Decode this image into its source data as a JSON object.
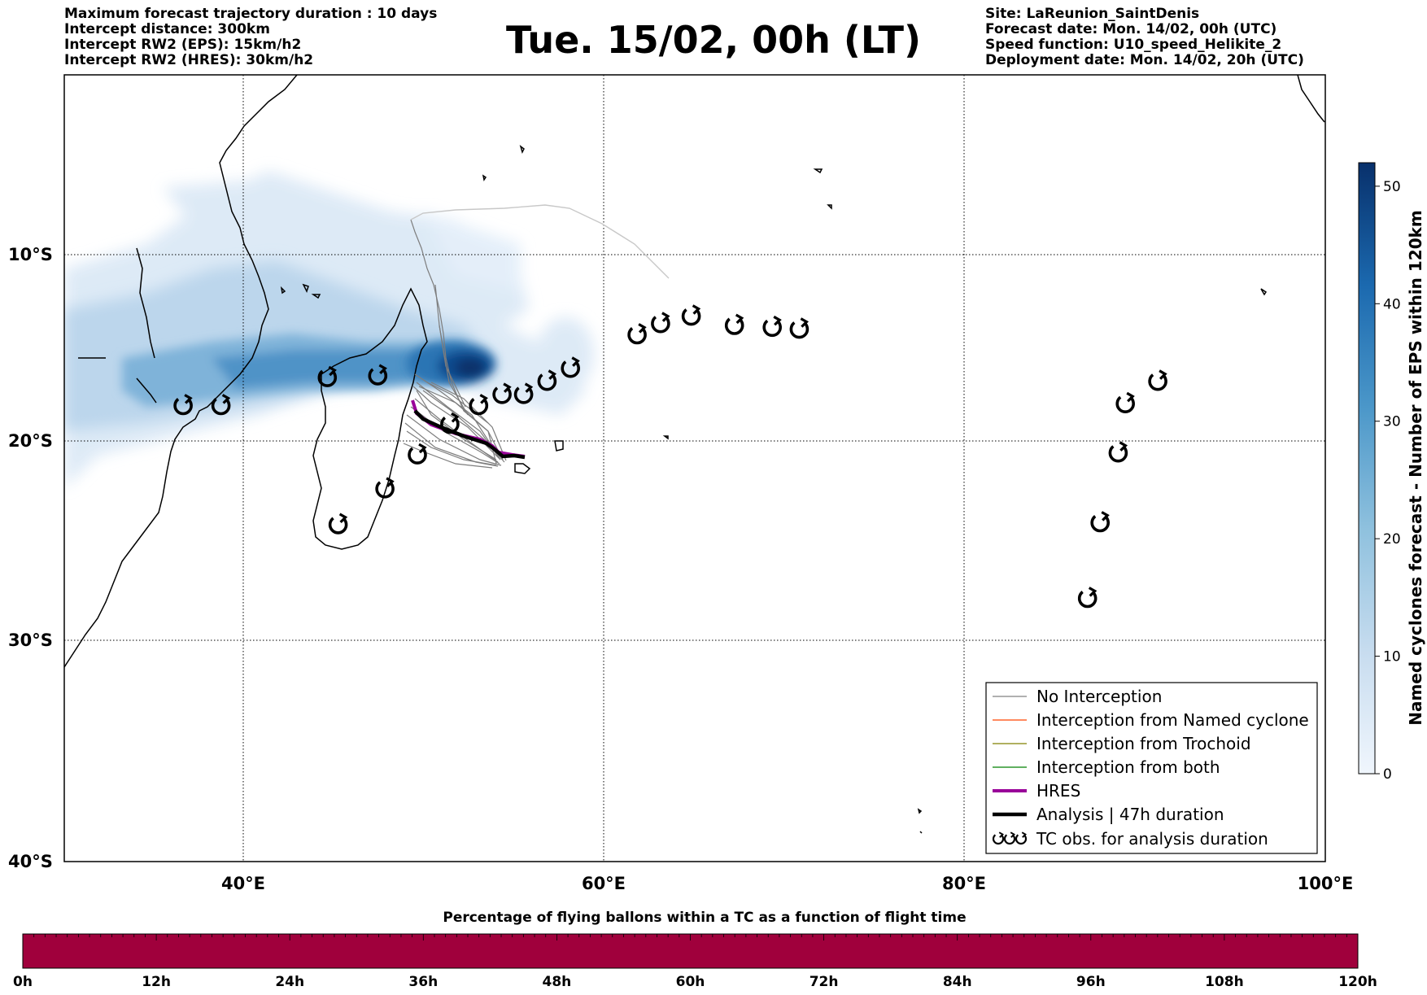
{
  "header": {
    "left": [
      "Maximum forecast trajectory duration : 10 days",
      "Intercept distance: 300km",
      "Intercept RW2 (EPS):  15km/h2",
      "Intercept RW2 (HRES): 30km/h2"
    ],
    "title": "Tue. 15/02, 00h (LT)",
    "right": [
      "Site: LaReunion_SaintDenis",
      "Forecast date: Mon. 14/02, 00h (UTC)",
      "Speed function: U10_speed_Helikite_2",
      "Deployment date: Mon. 14/02, 20h (UTC)"
    ]
  },
  "map": {
    "lat_ticks": [
      "10°S",
      "20°S",
      "30°S",
      "40°S"
    ],
    "lon_ticks": [
      "40°E",
      "60°E",
      "80°E",
      "100°E"
    ],
    "extent": {
      "lon_min": 30,
      "lon_max": 100,
      "lat_min": -40,
      "lat_max": -0.4
    },
    "tc_obs": [
      [
        36.6,
        -18.1
      ],
      [
        38.7,
        -18.1
      ],
      [
        44.6,
        -16.6
      ],
      [
        47.4,
        -16.5
      ],
      [
        49.6,
        -20.7
      ],
      [
        51.4,
        -19.1
      ],
      [
        53,
        -18.1
      ],
      [
        54.3,
        -17.5
      ],
      [
        55.5,
        -17.5
      ],
      [
        56.8,
        -16.8
      ],
      [
        58.1,
        -16.1
      ],
      [
        61.8,
        -14.3
      ],
      [
        63.1,
        -13.7
      ],
      [
        64.8,
        -13.3
      ],
      [
        67.2,
        -13.8
      ],
      [
        69.3,
        -13.9
      ],
      [
        70.8,
        -14
      ],
      [
        45.2,
        -24.2
      ],
      [
        47.8,
        -22.4
      ],
      [
        88.5,
        -20.6
      ],
      [
        88.9,
        -18
      ],
      [
        90.7,
        -16.8
      ],
      [
        87.5,
        -24.1
      ],
      [
        86.8,
        -27.9
      ]
    ],
    "hres_track": [
      [
        49.6,
        -17.8
      ],
      [
        50.2,
        -18.7
      ],
      [
        51.2,
        -19.4
      ],
      [
        52.5,
        -19.9
      ],
      [
        53.6,
        -20.2
      ],
      [
        54.2,
        -20.6
      ],
      [
        54.6,
        -21
      ],
      [
        55,
        -20.9
      ],
      [
        55.5,
        -20.9
      ]
    ],
    "analysis_track": [
      [
        49.7,
        -18.3
      ],
      [
        50.5,
        -19.1
      ],
      [
        51.6,
        -19.6
      ],
      [
        52.8,
        -20
      ],
      [
        53.8,
        -20.4
      ],
      [
        54.4,
        -20.8
      ],
      [
        54.7,
        -21
      ],
      [
        55.1,
        -20.9
      ],
      [
        55.5,
        -20.9
      ]
    ]
  },
  "colorbar": {
    "label": "Named cyclones forecast - Number of EPS within 120km",
    "ticks": [
      "0",
      "10",
      "20",
      "30",
      "40",
      "50"
    ],
    "tick_values": [
      0,
      10,
      20,
      30,
      40,
      50
    ],
    "max": 52,
    "color_min": "#f0f6fd",
    "color_max": "#08306b"
  },
  "legend": {
    "items": [
      {
        "label": "No Interception",
        "color": "#808080",
        "style": "thin"
      },
      {
        "label": "Interception from Named cyclone",
        "color": "#ff4500",
        "style": "thin"
      },
      {
        "label": "Interception from Trochoid",
        "color": "#808000",
        "style": "thin"
      },
      {
        "label": "Interception from both",
        "color": "#008000",
        "style": "thin"
      },
      {
        "label": "HRES",
        "color": "#990099",
        "style": "thick"
      },
      {
        "label": "Analysis | 47h duration",
        "color": "#000000",
        "style": "thick"
      },
      {
        "label": "TC obs. for analysis duration",
        "color": "#000000",
        "style": "symbol"
      }
    ]
  },
  "flight_bar": {
    "title": "Percentage of flying ballons within a TC as a function of flight time",
    "color": "#a0003c",
    "ticks": [
      "0h",
      "12h",
      "24h",
      "36h",
      "48h",
      "60h",
      "72h",
      "84h",
      "96h",
      "108h",
      "120h"
    ]
  }
}
